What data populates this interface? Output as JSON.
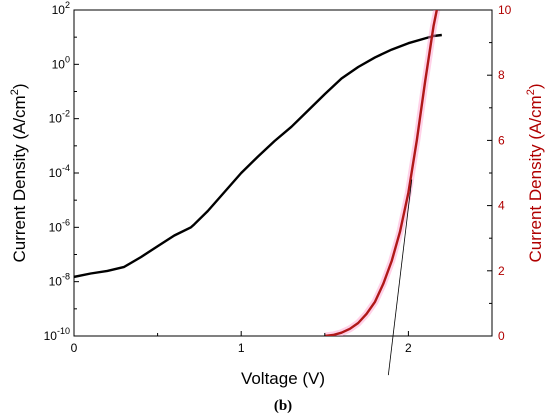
{
  "chart_data": {
    "type": "line",
    "caption": "(b)",
    "xlabel": "Voltage (V)",
    "xlim": [
      0,
      2.5
    ],
    "x_ticks": [
      "0",
      "1",
      "2"
    ],
    "left_axis": {
      "label": "Current Density (A/cm²)",
      "scale": "log",
      "ylim": [
        1e-10,
        100
      ],
      "ticks": [
        {
          "value": 1e-10,
          "base": "10",
          "exp": "-10"
        },
        {
          "value": 1e-08,
          "base": "10",
          "exp": "-8"
        },
        {
          "value": 1e-06,
          "base": "10",
          "exp": "-6"
        },
        {
          "value": 0.0001,
          "base": "10",
          "exp": "-4"
        },
        {
          "value": 0.01,
          "base": "10",
          "exp": "-2"
        },
        {
          "value": 1,
          "base": "10",
          "exp": "0"
        },
        {
          "value": 100,
          "base": "10",
          "exp": "2"
        }
      ]
    },
    "right_axis": {
      "label": "Current Density (A/cm²)",
      "scale": "linear",
      "ylim": [
        0,
        10
      ],
      "ticks": [
        "0",
        "2",
        "4",
        "6",
        "8",
        "10"
      ]
    },
    "series": [
      {
        "axis": "left",
        "color": "#000000",
        "x": [
          0.0,
          0.1,
          0.2,
          0.3,
          0.4,
          0.5,
          0.6,
          0.7,
          0.72,
          0.8,
          0.9,
          1.0,
          1.1,
          1.2,
          1.3,
          1.4,
          1.5,
          1.6,
          1.7,
          1.8,
          1.9,
          2.0,
          2.1,
          2.15,
          2.2
        ],
        "y": [
          1.5e-08,
          2e-08,
          2.5e-08,
          3.5e-08,
          8e-08,
          2e-07,
          5e-07,
          1e-06,
          1.3e-06,
          4e-06,
          2e-05,
          0.0001,
          0.0004,
          0.0015,
          0.005,
          0.02,
          0.08,
          0.3,
          0.8,
          1.8,
          3.5,
          6,
          9,
          11,
          12
        ]
      },
      {
        "axis": "right",
        "color": "#b01818",
        "x": [
          1.5,
          1.55,
          1.6,
          1.65,
          1.7,
          1.75,
          1.8,
          1.85,
          1.9,
          1.95,
          2.0,
          2.05,
          2.1,
          2.15,
          2.17
        ],
        "y": [
          0,
          0.03,
          0.1,
          0.22,
          0.4,
          0.68,
          1.05,
          1.6,
          2.3,
          3.2,
          4.4,
          6.0,
          7.8,
          9.5,
          10
        ]
      }
    ],
    "annotation_line": {
      "x": [
        1.88,
        2.02
      ],
      "y_right": [
        -1.2,
        4.8
      ],
      "color": "#000000"
    }
  }
}
